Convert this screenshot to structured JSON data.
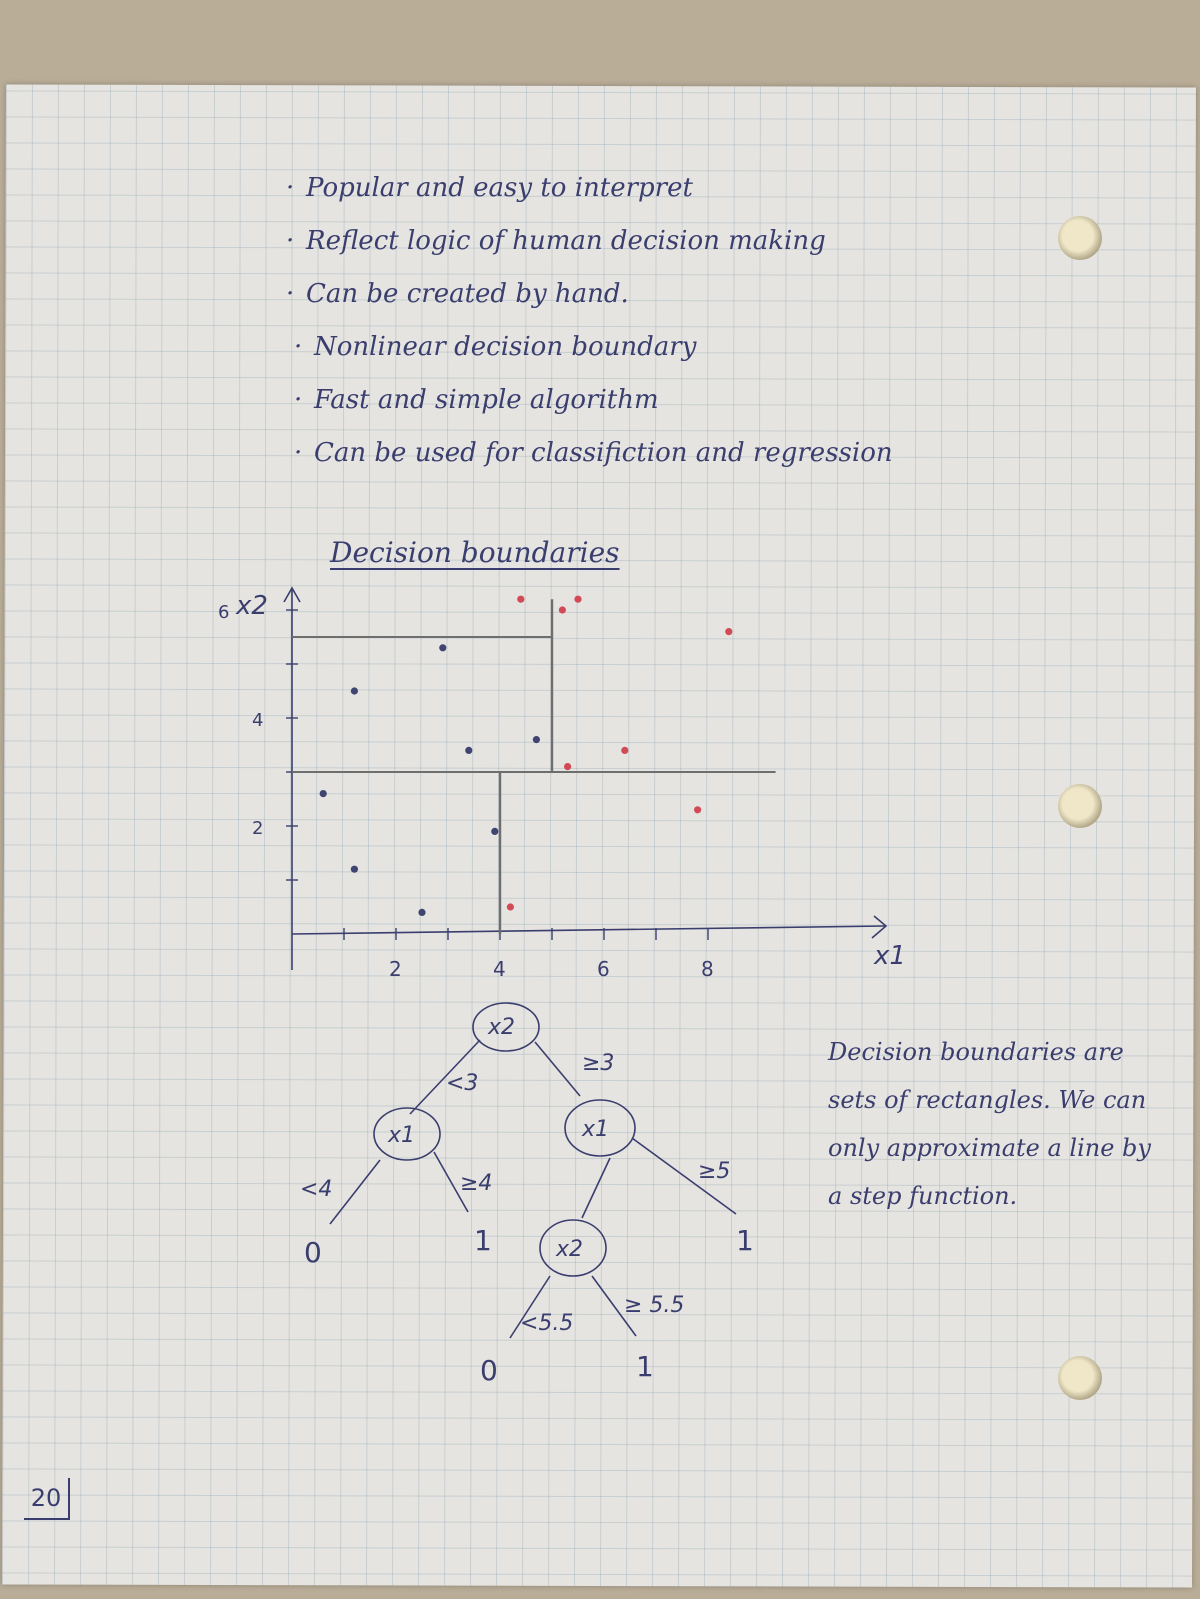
{
  "bullets": [
    "Popular and easy to interpret",
    "Reflect logic of human decision making",
    "Can be created by hand.",
    "Nonlinear decision boundary",
    "Fast and simple algorithm",
    "Can be used for classifiction and regression"
  ],
  "diagram": {
    "heading": "Decision boundaries",
    "axes": {
      "x_label": "x1",
      "y_label": "x2",
      "x_ticks": [
        "2",
        "4",
        "6",
        "8"
      ],
      "y_ticks": [
        "2",
        "4",
        "6"
      ]
    },
    "points_class0": [
      [
        0.6,
        2.6
      ],
      [
        1.2,
        1.2
      ],
      [
        2.5,
        0.4
      ],
      [
        3.4,
        3.4
      ],
      [
        3.9,
        1.9
      ],
      [
        2.9,
        5.3
      ],
      [
        1.2,
        4.5
      ],
      [
        4.7,
        3.6
      ]
    ],
    "points_class1": [
      [
        4.2,
        0.5
      ],
      [
        4.4,
        6.2
      ],
      [
        5.2,
        6.0
      ],
      [
        5.5,
        6.2
      ],
      [
        5.3,
        3.1
      ],
      [
        6.4,
        3.4
      ],
      [
        7.8,
        2.3
      ],
      [
        8.4,
        5.6
      ]
    ],
    "boundaries": [
      {
        "axis": "x2",
        "at": 3,
        "from": 0,
        "to": 9.3
      },
      {
        "axis": "x1",
        "at": 4,
        "from": 0,
        "to": 3
      },
      {
        "axis": "x1",
        "at": 5,
        "from": 3,
        "to": 6.2
      },
      {
        "axis": "x2",
        "at": 5.5,
        "from": 0,
        "to": 5
      }
    ],
    "colors": {
      "class0": "#3f4470",
      "class1": "#d24a55",
      "line": "#6e6e6e"
    }
  },
  "tree": {
    "root": "x2",
    "left_node": "x1",
    "right_node": "x1",
    "sub_node": "x2",
    "edges": {
      "lt3": "<3",
      "ge3": "≥3",
      "lt4": "<4",
      "ge4": "≥4",
      "ge5": "≥5",
      "lt55": "<5.5",
      "ge55": "≥ 5.5"
    },
    "leaves": {
      "a": "0",
      "b": "1",
      "c": "1",
      "d": "0",
      "e": "1"
    }
  },
  "note": "Decision boundaries are sets of rectangles. We can only approximate a line by a step function.",
  "page_number": "20"
}
